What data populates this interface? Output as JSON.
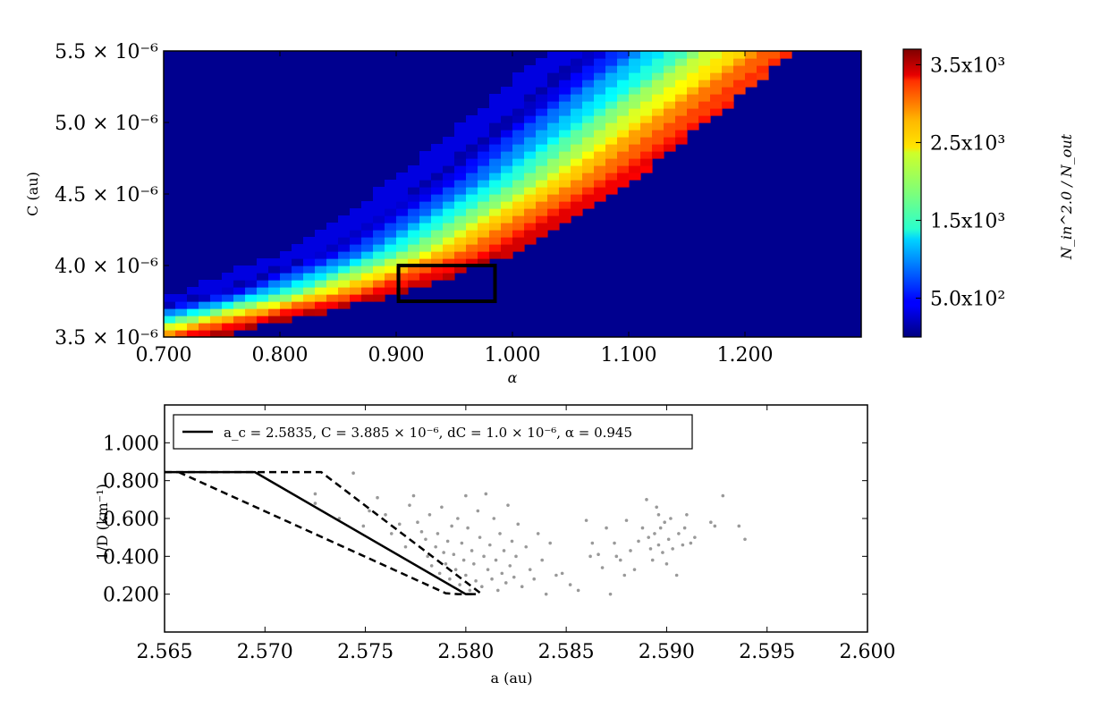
{
  "chart_data": [
    {
      "type": "heatmap",
      "xlabel": "α",
      "ylabel": "C (au)",
      "xlim": [
        0.7,
        1.3
      ],
      "ylim": [
        3.5e-06,
        5.5e-06
      ],
      "x_ticks": [
        "0.700",
        "0.800",
        "0.900",
        "1.000",
        "1.100",
        "1.200"
      ],
      "x_tick_values": [
        0.7,
        0.8,
        0.9,
        1.0,
        1.1,
        1.2
      ],
      "y_ticks": [
        "3.5 × 10⁻⁶",
        "4.0 × 10⁻⁶",
        "4.5 × 10⁻⁶",
        "5.0 × 10⁻⁶",
        "5.5 × 10⁻⁶"
      ],
      "y_tick_values": [
        3.5e-06,
        4e-06,
        4.5e-06,
        5e-06,
        5.5e-06
      ],
      "colorbar": {
        "label": "N_in^2.0 / N_out",
        "range": [
          0,
          3700
        ],
        "tick_labels": [
          "5.0x10²",
          "1.5x10³",
          "2.5x10³",
          "3.5x10³"
        ],
        "tick_values": [
          500,
          1500,
          2500,
          3500
        ],
        "colormap": "jet"
      },
      "band": {
        "description": "diagonal band of high values; peak ridge along lower-right edge",
        "ridge_alpha_at_C": [
          [
            0.74,
            3.5e-06
          ],
          [
            0.9,
            3.8e-06
          ],
          [
            1.0,
            4.1e-06
          ],
          [
            1.1,
            4.6e-06
          ],
          [
            1.24,
            5.5e-06
          ]
        ],
        "peak_value": 3600,
        "background_value": 0
      },
      "highlight_box": {
        "alpha_range": [
          0.902,
          0.985
        ],
        "C_range": [
          3.75e-06,
          4e-06
        ]
      }
    },
    {
      "type": "scatter",
      "xlabel": "a (au)",
      "ylabel": "1/D (km⁻¹)",
      "xlim": [
        2.565,
        2.6
      ],
      "ylim": [
        0.0,
        1.2
      ],
      "x_ticks": [
        "2.565",
        "2.570",
        "2.575",
        "2.580",
        "2.585",
        "2.590",
        "2.595",
        "2.600"
      ],
      "x_tick_values": [
        2.565,
        2.57,
        2.575,
        2.58,
        2.585,
        2.59,
        2.595,
        2.6
      ],
      "y_ticks": [
        "0.200",
        "0.400",
        "0.600",
        "0.800",
        "1.000"
      ],
      "y_tick_values": [
        0.2,
        0.4,
        0.6,
        0.8,
        1.0
      ],
      "legend": {
        "position": "top-left",
        "label": "a_c = 2.5835,  C = 3.885 × 10⁻⁶,  dC = 1.0 × 10⁻⁶,  α = 0.945"
      },
      "series": [
        {
          "style": "solid",
          "color": "#000000",
          "x": [
            2.565,
            2.5695,
            2.58,
            2.5805
          ],
          "y": [
            0.845,
            0.845,
            0.2,
            0.2
          ]
        },
        {
          "style": "dashed",
          "color": "#000000",
          "x": [
            2.565,
            2.5728,
            2.5808
          ],
          "y": [
            0.845,
            0.845,
            0.2
          ]
        },
        {
          "style": "dashed",
          "color": "#000000",
          "x": [
            2.5657,
            2.579,
            2.5796,
            2.5803
          ],
          "y": [
            0.845,
            0.205,
            0.2,
            0.2
          ]
        }
      ],
      "points_color": "#999999",
      "points": [
        [
          2.5725,
          0.73
        ],
        [
          2.5725,
          0.68
        ],
        [
          2.5737,
          0.6
        ],
        [
          2.5744,
          0.84
        ],
        [
          2.5749,
          0.56
        ],
        [
          2.5752,
          0.64
        ],
        [
          2.5756,
          0.71
        ],
        [
          2.576,
          0.62
        ],
        [
          2.5763,
          0.52
        ],
        [
          2.5767,
          0.57
        ],
        [
          2.577,
          0.45
        ],
        [
          2.5772,
          0.67
        ],
        [
          2.5774,
          0.72
        ],
        [
          2.5776,
          0.58
        ],
        [
          2.5778,
          0.53
        ],
        [
          2.578,
          0.49
        ],
        [
          2.5781,
          0.4
        ],
        [
          2.5782,
          0.62
        ],
        [
          2.5783,
          0.35
        ],
        [
          2.5785,
          0.45
        ],
        [
          2.5786,
          0.52
        ],
        [
          2.5787,
          0.31
        ],
        [
          2.5788,
          0.66
        ],
        [
          2.5789,
          0.42
        ],
        [
          2.579,
          0.36
        ],
        [
          2.5791,
          0.48
        ],
        [
          2.5792,
          0.28
        ],
        [
          2.5793,
          0.56
        ],
        [
          2.5794,
          0.41
        ],
        [
          2.5795,
          0.33
        ],
        [
          2.5796,
          0.6
        ],
        [
          2.5797,
          0.25
        ],
        [
          2.5798,
          0.47
        ],
        [
          2.5799,
          0.38
        ],
        [
          2.58,
          0.72
        ],
        [
          2.58,
          0.3
        ],
        [
          2.5801,
          0.55
        ],
        [
          2.5802,
          0.22
        ],
        [
          2.5803,
          0.43
        ],
        [
          2.5804,
          0.36
        ],
        [
          2.5805,
          0.27
        ],
        [
          2.5806,
          0.64
        ],
        [
          2.5807,
          0.5
        ],
        [
          2.5808,
          0.24
        ],
        [
          2.5809,
          0.4
        ],
        [
          2.581,
          0.73
        ],
        [
          2.5811,
          0.33
        ],
        [
          2.5812,
          0.46
        ],
        [
          2.5813,
          0.28
        ],
        [
          2.5814,
          0.6
        ],
        [
          2.5815,
          0.38
        ],
        [
          2.5816,
          0.22
        ],
        [
          2.5817,
          0.52
        ],
        [
          2.5818,
          0.31
        ],
        [
          2.5819,
          0.43
        ],
        [
          2.582,
          0.26
        ],
        [
          2.5821,
          0.67
        ],
        [
          2.5822,
          0.35
        ],
        [
          2.5823,
          0.48
        ],
        [
          2.5824,
          0.29
        ],
        [
          2.5825,
          0.4
        ],
        [
          2.5826,
          0.57
        ],
        [
          2.5828,
          0.24
        ],
        [
          2.583,
          0.45
        ],
        [
          2.5832,
          0.33
        ],
        [
          2.5834,
          0.28
        ],
        [
          2.5836,
          0.52
        ],
        [
          2.5838,
          0.38
        ],
        [
          2.584,
          0.2
        ],
        [
          2.5842,
          0.47
        ],
        [
          2.5845,
          0.3
        ],
        [
          2.5848,
          0.31
        ],
        [
          2.5852,
          0.25
        ],
        [
          2.5856,
          0.22
        ],
        [
          2.586,
          0.59
        ],
        [
          2.5863,
          0.47
        ],
        [
          2.5866,
          0.41
        ],
        [
          2.5868,
          0.34
        ],
        [
          2.587,
          0.55
        ],
        [
          2.5872,
          0.2
        ],
        [
          2.5875,
          0.4
        ],
        [
          2.5877,
          0.38
        ],
        [
          2.5879,
          0.3
        ],
        [
          2.588,
          0.59
        ],
        [
          2.5882,
          0.43
        ],
        [
          2.5884,
          0.33
        ],
        [
          2.5886,
          0.48
        ],
        [
          2.5888,
          0.55
        ],
        [
          2.589,
          0.7
        ],
        [
          2.5891,
          0.5
        ],
        [
          2.5892,
          0.44
        ],
        [
          2.5893,
          0.38
        ],
        [
          2.5894,
          0.52
        ],
        [
          2.5895,
          0.66
        ],
        [
          2.5896,
          0.46
        ],
        [
          2.5897,
          0.55
        ],
        [
          2.5898,
          0.42
        ],
        [
          2.5899,
          0.58
        ],
        [
          2.59,
          0.36
        ],
        [
          2.5901,
          0.49
        ],
        [
          2.5902,
          0.6
        ],
        [
          2.5903,
          0.44
        ],
        [
          2.5905,
          0.3
        ],
        [
          2.5906,
          0.52
        ],
        [
          2.5908,
          0.46
        ],
        [
          2.591,
          0.62
        ],
        [
          2.5912,
          0.47
        ],
        [
          2.5914,
          0.5
        ],
        [
          2.5922,
          0.58
        ],
        [
          2.5924,
          0.56
        ],
        [
          2.5928,
          0.72
        ],
        [
          2.5936,
          0.56
        ],
        [
          2.5939,
          0.49
        ],
        [
          2.5862,
          0.4
        ],
        [
          2.5874,
          0.47
        ],
        [
          2.5896,
          0.62
        ],
        [
          2.5909,
          0.55
        ]
      ]
    }
  ]
}
